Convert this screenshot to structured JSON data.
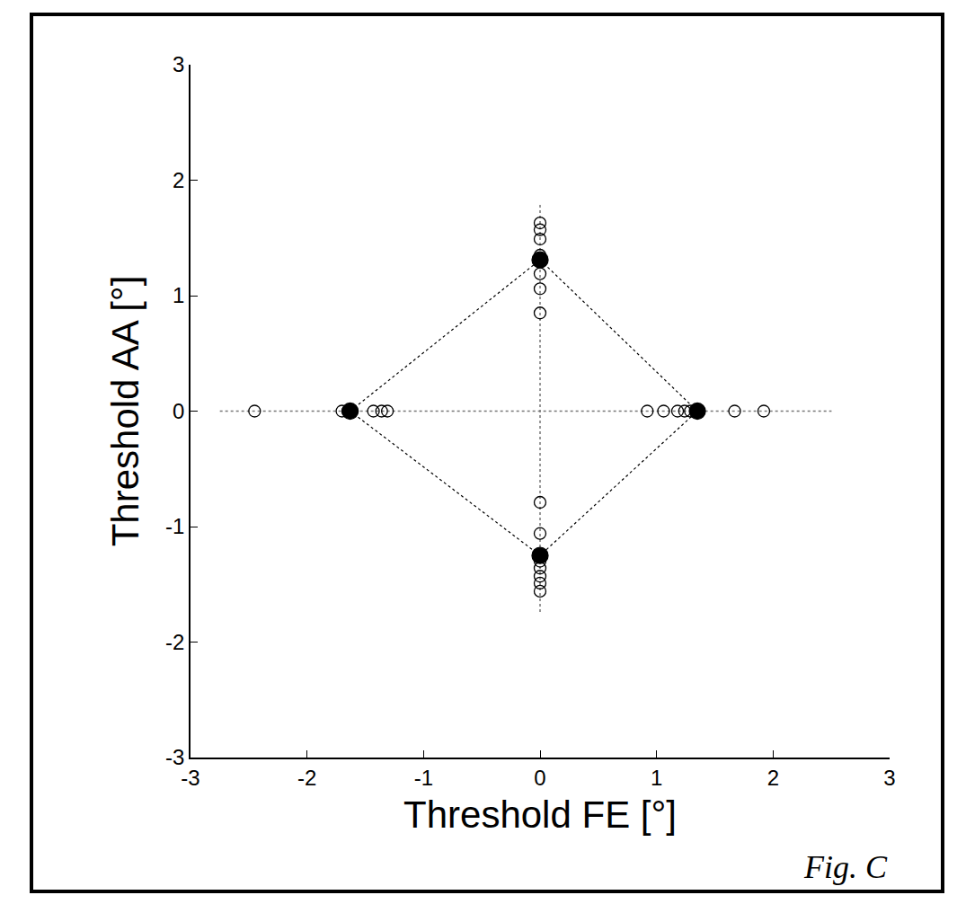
{
  "chart_data": {
    "type": "scatter",
    "x_label": "Threshold FE [°]",
    "y_label": "Threshold AA [°]",
    "annotations": [
      {
        "text": "Fig. C"
      }
    ],
    "xlim": [
      -3,
      3
    ],
    "ylim": [
      -3,
      3
    ],
    "xticks": [
      -3,
      -2,
      -1,
      0,
      1,
      2,
      3
    ],
    "yticks": [
      -3,
      -2,
      -1,
      0,
      1,
      2,
      3
    ],
    "grid": false,
    "series": [
      {
        "color": "#000000",
        "marker": "open-circle",
        "x": [
          -2.45,
          -1.7,
          -1.65,
          -1.43,
          -1.36,
          -1.31,
          0.92,
          1.06,
          1.18,
          1.24,
          1.29,
          1.67,
          1.92,
          0,
          0,
          0,
          0,
          0,
          0,
          0,
          0,
          0,
          0,
          0,
          0,
          0,
          0
        ],
        "y": [
          0,
          0,
          0,
          0,
          0,
          0,
          0,
          0,
          0,
          0,
          0,
          0,
          0,
          1.63,
          1.57,
          1.49,
          1.35,
          1.19,
          1.06,
          0.85,
          -0.79,
          -1.06,
          -1.3,
          -1.36,
          -1.43,
          -1.49,
          -1.56
        ]
      },
      {
        "color": "#000000",
        "marker": "circle",
        "line_style": "dotted",
        "x": [
          -1.63,
          0,
          1.35,
          0
        ],
        "y": [
          0,
          1.31,
          0,
          -1.25
        ]
      }
    ]
  }
}
